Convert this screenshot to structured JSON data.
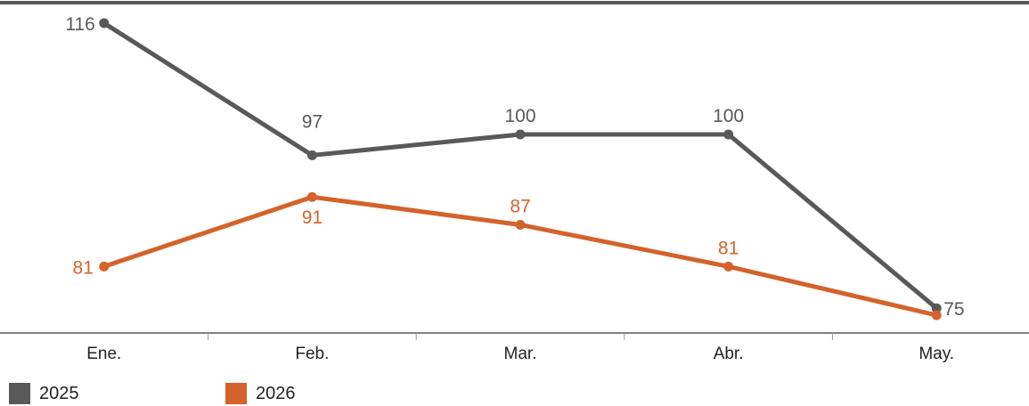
{
  "chart_data": {
    "type": "line",
    "title": "",
    "xlabel": "",
    "ylabel": "",
    "categories": [
      "Ene.",
      "Feb.",
      "Mar.",
      "Abr.",
      "May."
    ],
    "series": [
      {
        "name": "2025",
        "color": "#595959",
        "values": [
          116,
          97,
          100,
          100,
          75
        ]
      },
      {
        "name": "2026",
        "color": "#d4622b",
        "values": [
          81,
          91,
          87,
          81,
          74
        ]
      }
    ],
    "data_labels": {
      "2025": [
        "116",
        "97",
        "100",
        "100",
        "75"
      ],
      "2026": [
        "81",
        "91",
        "87",
        "81",
        ""
      ]
    },
    "ylim": [
      72,
      119
    ],
    "grid": false,
    "legend_position": "bottom-left"
  }
}
